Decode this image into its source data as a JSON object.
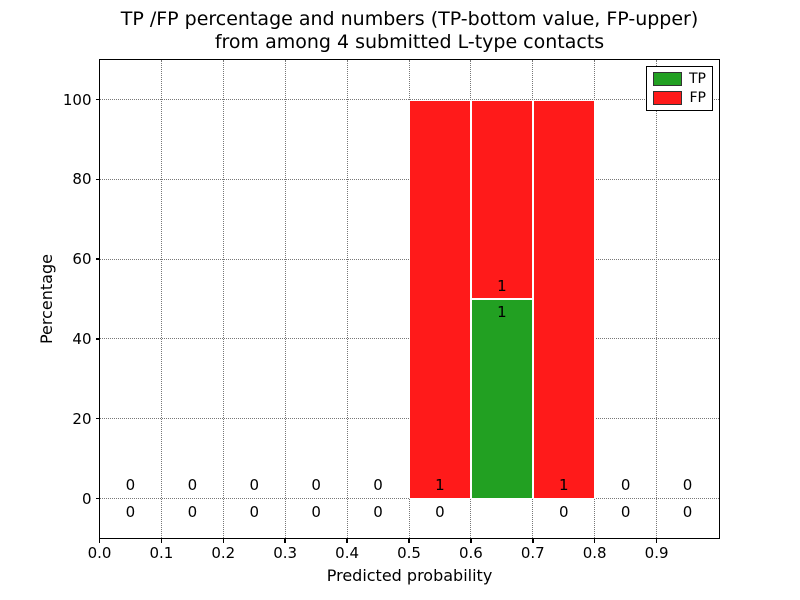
{
  "title": {
    "line1": "TP /FP percentage and numbers (TP-bottom value, FP-upper)",
    "line2": "from among 4 submitted L-type contacts"
  },
  "axes": {
    "xlabel": "Predicted probability",
    "ylabel": "Percentage"
  },
  "legend": {
    "items": [
      {
        "label": "TP",
        "color": "#22a022"
      },
      {
        "label": "FP",
        "color": "#ff1a1a"
      }
    ]
  },
  "chart_data": {
    "type": "bar",
    "stacked": true,
    "grid": "dotted",
    "legend_position": "upper right",
    "title": "TP /FP percentage and numbers (TP-bottom value, FP-upper) from among 4 submitted L-type contacts",
    "xlabel": "Predicted probability",
    "ylabel": "Percentage",
    "xlim": [
      0.0,
      1.0
    ],
    "ylim": [
      -9.8,
      110
    ],
    "xticks": [
      "0.0",
      "0.1",
      "0.2",
      "0.3",
      "0.4",
      "0.5",
      "0.6",
      "0.7",
      "0.8",
      "0.9"
    ],
    "yticks": [
      0,
      20,
      40,
      60,
      80,
      100
    ],
    "bin_width": 0.1,
    "categories": [
      "0.0-0.1",
      "0.1-0.2",
      "0.2-0.3",
      "0.3-0.4",
      "0.4-0.5",
      "0.5-0.6",
      "0.6-0.7",
      "0.7-0.8",
      "0.8-0.9",
      "0.9-1.0"
    ],
    "series": [
      {
        "name": "TP",
        "color": "#22a022",
        "pct": [
          0,
          0,
          0,
          0,
          0,
          0,
          50,
          0,
          0,
          0
        ],
        "counts": [
          0,
          0,
          0,
          0,
          0,
          0,
          1,
          0,
          0,
          0
        ]
      },
      {
        "name": "FP",
        "color": "#ff1a1a",
        "pct": [
          0,
          0,
          0,
          0,
          0,
          100,
          50,
          100,
          0,
          0
        ],
        "counts": [
          0,
          0,
          0,
          0,
          0,
          1,
          1,
          1,
          0,
          0
        ]
      }
    ],
    "annotation_offset_pct": 3.3,
    "total_submitted": 4
  }
}
